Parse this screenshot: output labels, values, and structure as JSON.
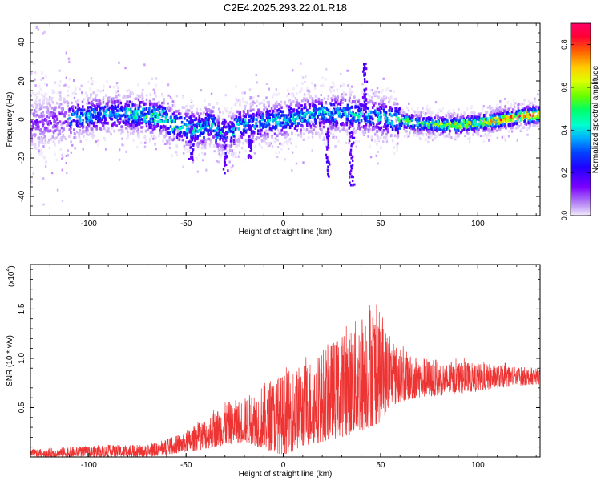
{
  "chart_data": [
    {
      "type": "heatmap",
      "title": "C2E4.2025.293.22.01.R18",
      "xlabel": "Height of straight line (km)",
      "ylabel": "Frequency (Hz)",
      "xlim": [
        -130,
        132
      ],
      "ylim": [
        -50,
        50
      ],
      "xticks": [
        -100,
        -50,
        0,
        50,
        100
      ],
      "yticks": [
        -40,
        -20,
        0,
        20,
        40
      ],
      "colorbar": {
        "label": "Normalized spectral amplitude",
        "range": [
          0.0,
          0.9
        ],
        "ticks": [
          0.0,
          0.2,
          0.4,
          0.6,
          0.8
        ]
      }
    },
    {
      "type": "line",
      "xlabel": "Height of straight line (km)",
      "ylabel": "SNR (10 * v/v)",
      "yscale_note": "(x10",
      "yscale_exp": "4",
      "yscale_close": ")",
      "xlim": [
        -130,
        132
      ],
      "ylim": [
        0,
        1.95
      ],
      "xticks": [
        -100,
        -50,
        0,
        50,
        100
      ],
      "yticks": [
        0.5,
        1.0,
        1.5
      ],
      "color": "#ee3333",
      "envelope": {
        "x": [
          -130,
          -110,
          -90,
          -75,
          -70,
          -60,
          -50,
          -40,
          -30,
          -20,
          -10,
          0,
          10,
          20,
          30,
          40,
          45,
          50,
          55,
          60,
          70,
          80,
          90,
          100,
          110,
          120,
          132
        ],
        "low": [
          0.0,
          0.0,
          0.0,
          0.0,
          0.0,
          0.02,
          0.05,
          0.08,
          0.12,
          0.15,
          0.08,
          0.02,
          0.1,
          0.15,
          0.2,
          0.25,
          0.3,
          0.35,
          0.5,
          0.55,
          0.6,
          0.62,
          0.64,
          0.66,
          0.7,
          0.72,
          0.74
        ],
        "high": [
          0.08,
          0.1,
          0.12,
          0.12,
          0.12,
          0.18,
          0.25,
          0.4,
          0.55,
          0.6,
          0.75,
          0.85,
          0.95,
          1.1,
          1.25,
          1.45,
          1.65,
          1.45,
          1.2,
          1.1,
          1.02,
          0.98,
          0.96,
          0.95,
          0.94,
          0.92,
          0.9
        ]
      }
    }
  ]
}
